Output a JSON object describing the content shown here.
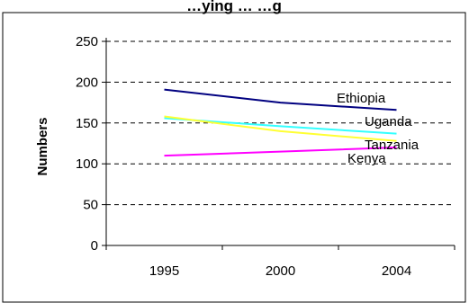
{
  "chart_data": {
    "type": "line",
    "title": "…ying … …g",
    "xlabel": "",
    "ylabel": "Numbers",
    "x": [
      "1995",
      "2000",
      "2004"
    ],
    "ylim": [
      0,
      250
    ],
    "yticks": [
      "0",
      "50",
      "100",
      "150",
      "200",
      "250"
    ],
    "grid": true,
    "legend": "direct-labels",
    "series": [
      {
        "name": "Ethiopia",
        "values": [
          191,
          175,
          166
        ],
        "color": "#000080"
      },
      {
        "name": "Uganda",
        "values": [
          156,
          146,
          137
        ],
        "color": "#33ffff"
      },
      {
        "name": "Tanzania",
        "values": [
          158,
          140,
          128
        ],
        "color": "#ffff33"
      },
      {
        "name": "Kenya",
        "values": [
          110,
          115,
          120
        ],
        "color": "#ff00ff"
      }
    ]
  }
}
